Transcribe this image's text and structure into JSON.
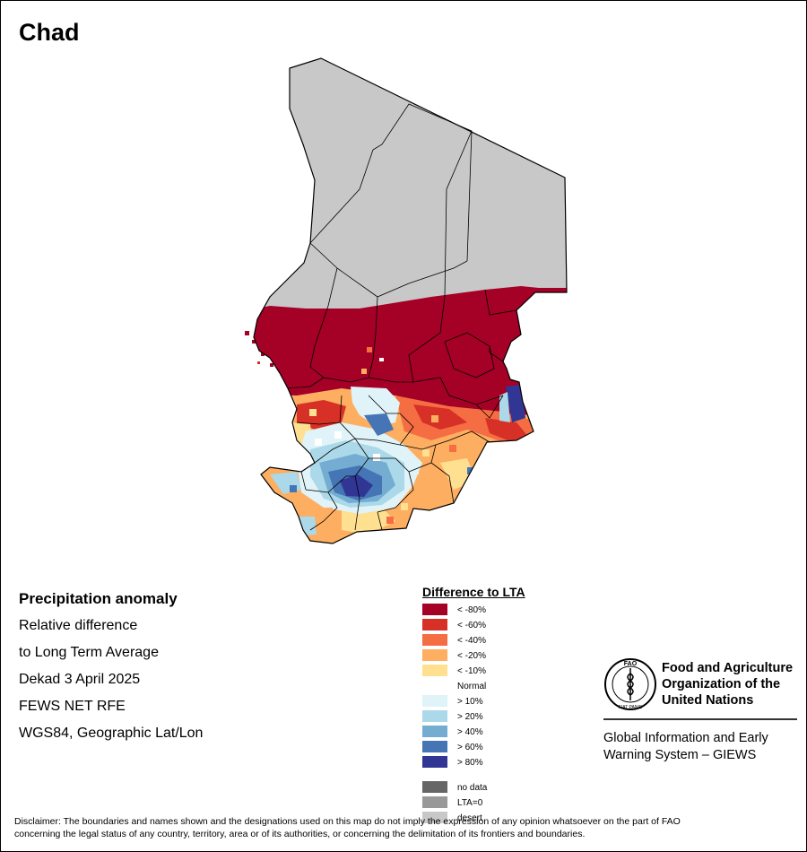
{
  "map": {
    "title": "Chad"
  },
  "info": {
    "heading": "Precipitation anomaly",
    "line1": "Relative difference",
    "line2": "to Long Term Average",
    "line3": "Dekad 3 April 2025",
    "line4": "FEWS NET RFE",
    "line5": "WGS84, Geographic Lat/Lon"
  },
  "legend": {
    "title": "Difference to LTA",
    "items": [
      {
        "label": "< -80%",
        "color": "#a50026"
      },
      {
        "label": "< -60%",
        "color": "#d73027"
      },
      {
        "label": "< -40%",
        "color": "#f46d43"
      },
      {
        "label": "< -20%",
        "color": "#fdae61"
      },
      {
        "label": "< -10%",
        "color": "#fee090"
      },
      {
        "label": "Normal",
        "color": "#ffffff"
      },
      {
        "label": "> 10%",
        "color": "#e0f3f8"
      },
      {
        "label": "> 20%",
        "color": "#abd9e9"
      },
      {
        "label": "> 40%",
        "color": "#74add1"
      },
      {
        "label": "> 60%",
        "color": "#4575b4"
      },
      {
        "label": "> 80%",
        "color": "#313695"
      }
    ],
    "extra": [
      {
        "label": "no data",
        "color": "#666666"
      },
      {
        "label": "LTA=0",
        "color": "#999999"
      },
      {
        "label": "desert",
        "color": "#c8c8c8"
      }
    ]
  },
  "fao": {
    "name_line1": "Food and Agriculture",
    "name_line2": "Organization of the",
    "name_line3": "United Nations",
    "logo_text": "FAO",
    "motto": "FIAT PANIS",
    "giews_line1": "Global Information and Early",
    "giews_line2": "Warning System – GIEWS"
  },
  "disclaimer": {
    "line1": "Disclaimer: The boundaries and names shown and the designations used on this map do not imply the expression of any opinion whatsoever on the part of FAO",
    "line2": "concerning the legal status of any country, territory, area or of its authorities, or concerning the delimitation of its frontiers and boundaries."
  }
}
